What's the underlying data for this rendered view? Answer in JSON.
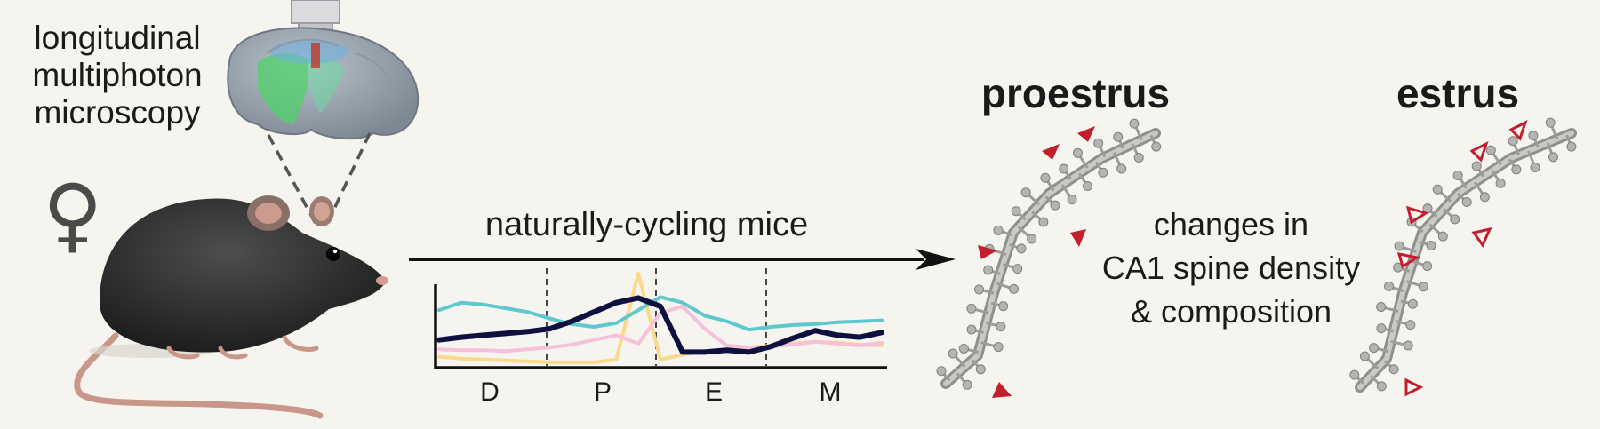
{
  "method_lines": [
    "longitudinal",
    "multiphoton",
    "microscopy"
  ],
  "sex_symbol": "♀",
  "arrow_label": "naturally-cycling mice",
  "stages": {
    "left": "proestrus",
    "right": "estrus"
  },
  "finding_lines": [
    "changes in",
    "CA1 spine density",
    "& composition"
  ],
  "chart_data": {
    "type": "line",
    "categories": [
      "D",
      "P",
      "E",
      "M"
    ],
    "x": [
      0,
      0.05,
      0.1,
      0.15,
      0.2,
      0.25,
      0.3,
      0.35,
      0.4,
      0.45,
      0.5,
      0.55,
      0.6,
      0.65,
      0.7,
      0.75,
      0.8,
      0.85,
      0.9,
      0.95,
      1.0
    ],
    "series": [
      {
        "color": "#5ec8cf",
        "values": [
          0.58,
          0.66,
          0.64,
          0.6,
          0.56,
          0.49,
          0.43,
          0.4,
          0.44,
          0.58,
          0.72,
          0.66,
          0.52,
          0.46,
          0.37,
          0.4,
          0.42,
          0.43,
          0.45,
          0.46,
          0.47
        ]
      },
      {
        "color": "#0e1140",
        "values": [
          0.26,
          0.29,
          0.31,
          0.33,
          0.35,
          0.38,
          0.46,
          0.56,
          0.66,
          0.71,
          0.62,
          0.13,
          0.13,
          0.15,
          0.13,
          0.19,
          0.28,
          0.36,
          0.31,
          0.29,
          0.34
        ]
      },
      {
        "color": "#f4c0da",
        "values": [
          0.16,
          0.15,
          0.15,
          0.14,
          0.16,
          0.18,
          0.21,
          0.26,
          0.31,
          0.22,
          0.55,
          0.62,
          0.38,
          0.2,
          0.18,
          0.19,
          0.21,
          0.24,
          0.22,
          0.2,
          0.23
        ]
      },
      {
        "color": "#fbd98a",
        "values": [
          0.08,
          0.06,
          0.05,
          0.04,
          0.03,
          0.02,
          0.02,
          0.02,
          0.05,
          0.97,
          0.05,
          0.1,
          0.14,
          0.16,
          0.18,
          0.2,
          0.22,
          0.24,
          0.23,
          0.21,
          0.2
        ]
      }
    ],
    "ylim": [
      0,
      1
    ],
    "grid": false
  }
}
